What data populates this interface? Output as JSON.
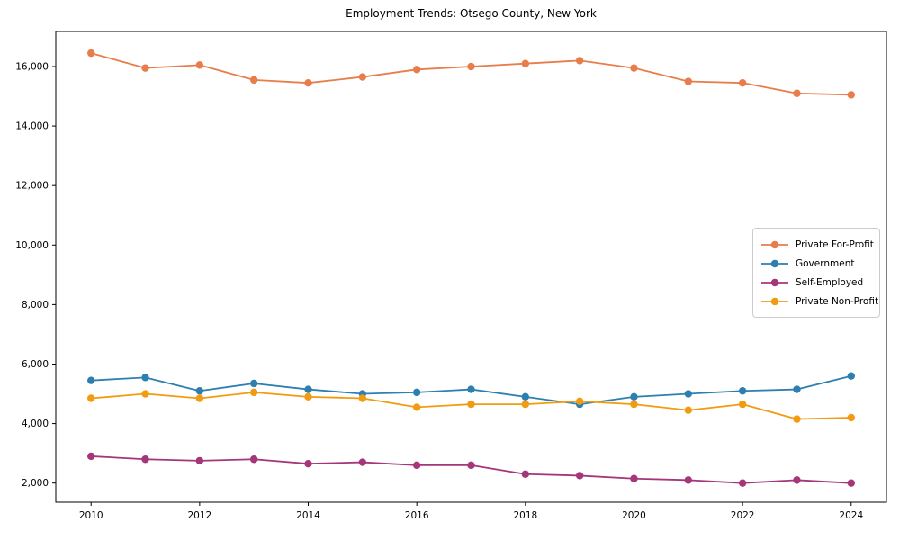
{
  "title": "Employment Trends: Otsego County, New York",
  "chart_data": {
    "type": "line",
    "title": "Employment Trends: Otsego County, New York",
    "xlabel": "",
    "ylabel": "",
    "x": [
      2010,
      2011,
      2012,
      2013,
      2014,
      2015,
      2016,
      2017,
      2018,
      2019,
      2020,
      2021,
      2022,
      2023,
      2024
    ],
    "series": [
      {
        "name": "Private For-Profit",
        "color": "#e87d4b",
        "values": [
          16450,
          15950,
          16050,
          15550,
          15450,
          15650,
          15900,
          16000,
          16100,
          16200,
          15950,
          15500,
          15450,
          15100,
          15050
        ]
      },
      {
        "name": "Government",
        "color": "#2d7fb0",
        "values": [
          5450,
          5550,
          5100,
          5350,
          5150,
          5000,
          5050,
          5150,
          4900,
          4650,
          4900,
          5000,
          5100,
          5150,
          5600
        ]
      },
      {
        "name": "Self-Employed",
        "color": "#a43679",
        "values": [
          2900,
          2800,
          2750,
          2800,
          2650,
          2700,
          2600,
          2600,
          2300,
          2250,
          2150,
          2100,
          2000,
          2100,
          2000
        ]
      },
      {
        "name": "Private Non-Profit",
        "color": "#f29b10",
        "values": [
          4850,
          5000,
          4850,
          5050,
          4900,
          4850,
          4550,
          4650,
          4650,
          4750,
          4650,
          4450,
          4650,
          4150,
          4200
        ]
      }
    ],
    "x_ticks": {
      "values": [
        2010,
        2012,
        2014,
        2016,
        2018,
        2020,
        2022,
        2024
      ],
      "labels": [
        "2010",
        "2012",
        "2014",
        "2016",
        "2018",
        "2020",
        "2022",
        "2024"
      ]
    },
    "y_ticks": {
      "values": [
        2000,
        4000,
        6000,
        8000,
        10000,
        12000,
        14000,
        16000
      ],
      "labels": [
        "2,000",
        "4,000",
        "6,000",
        "8,000",
        "10,000",
        "12,000",
        "14,000",
        "16,000"
      ]
    },
    "xlim": [
      2009.35,
      2024.65
    ],
    "ylim": [
      1355,
      17180
    ],
    "grid": false,
    "legend_position": "center-right",
    "frame_color": "#000000",
    "tick_label_color": "#000000"
  }
}
